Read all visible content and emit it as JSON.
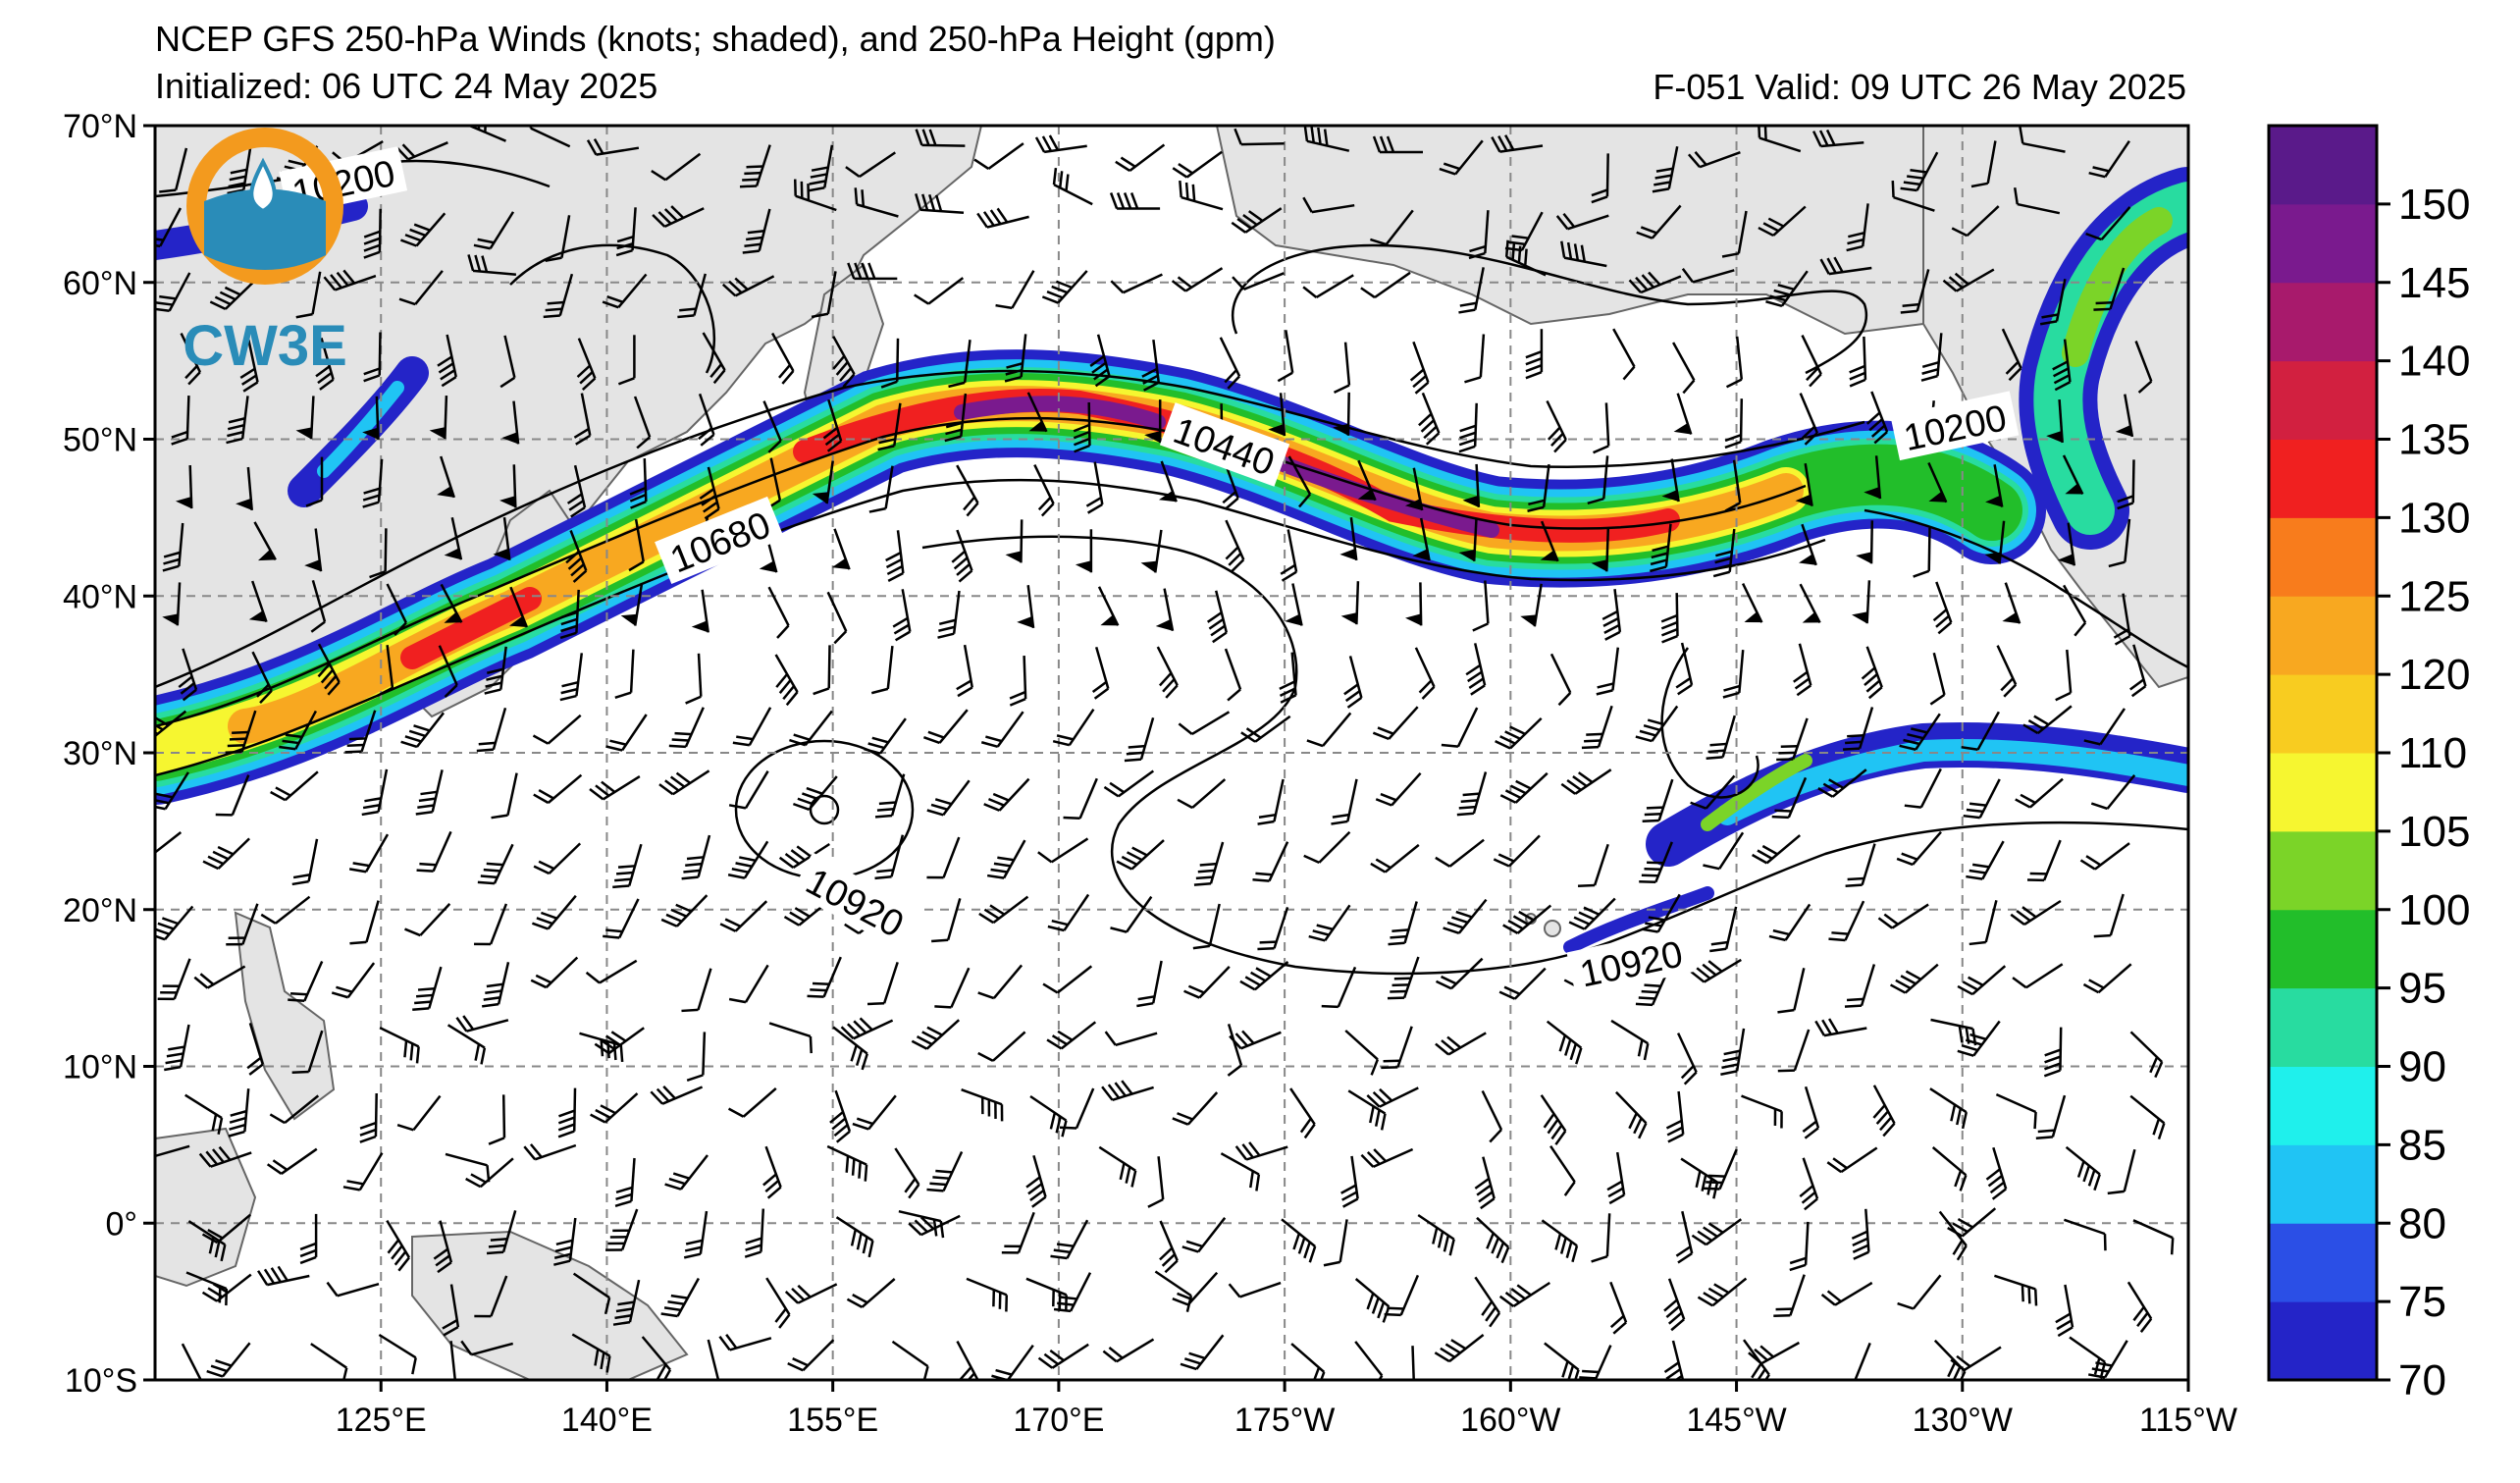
{
  "title": {
    "line1": "NCEP GFS 250-hPa Winds (knots; shaded), and 250-hPa Height (gpm)",
    "line2": "Initialized: 06 UTC 24 May 2025",
    "valid": "F-051  Valid: 09 UTC 26 May 2025"
  },
  "logo": {
    "text": "CW3E",
    "colors": {
      "ring": "#f39a1e",
      "water": "#2a8cb8",
      "text": "#2a8cb8"
    }
  },
  "map": {
    "lat_range": [
      -10,
      70
    ],
    "lon_range_east": [
      110,
      245
    ],
    "lat_ticks": [
      {
        "value": 70,
        "label": "70°N"
      },
      {
        "value": 60,
        "label": "60°N"
      },
      {
        "value": 50,
        "label": "50°N"
      },
      {
        "value": 40,
        "label": "40°N"
      },
      {
        "value": 30,
        "label": "30°N"
      },
      {
        "value": 20,
        "label": "20°N"
      },
      {
        "value": 10,
        "label": "10°N"
      },
      {
        "value": 0,
        "label": "0°"
      },
      {
        "value": -10,
        "label": "10°S"
      }
    ],
    "lon_ticks": [
      {
        "value": 125,
        "label": "125°E"
      },
      {
        "value": 140,
        "label": "140°E"
      },
      {
        "value": 155,
        "label": "155°E"
      },
      {
        "value": 170,
        "label": "170°E"
      },
      {
        "value": 185,
        "label": "175°W"
      },
      {
        "value": 200,
        "label": "160°W"
      },
      {
        "value": 215,
        "label": "145°W"
      },
      {
        "value": 230,
        "label": "130°W"
      },
      {
        "value": 245,
        "label": "115°W"
      }
    ],
    "contour_labels": [
      {
        "text": "10200",
        "lon": 122.5,
        "lat": 66.4,
        "angle": -12
      },
      {
        "text": "10680",
        "lon": 147.5,
        "lat": 43.5,
        "angle": -22
      },
      {
        "text": "10440",
        "lon": 181,
        "lat": 49.6,
        "angle": 20
      },
      {
        "text": "10200",
        "lon": 229.5,
        "lat": 50.8,
        "angle": -12
      },
      {
        "text": "10920",
        "lon": 156.5,
        "lat": 20.5,
        "angle": 28
      },
      {
        "text": "10920",
        "lon": 208,
        "lat": 16.6,
        "angle": -12
      }
    ]
  },
  "colorbar": {
    "levels": [
      70,
      75,
      80,
      85,
      90,
      95,
      100,
      105,
      110,
      120,
      125,
      130,
      135,
      140,
      145,
      150
    ],
    "labels": [
      "70",
      "75",
      "80",
      "85",
      "90",
      "95",
      "100",
      "105",
      "110",
      "120",
      "125",
      "130",
      "135",
      "140",
      "145",
      "150"
    ],
    "colors": [
      "#2424c8",
      "#2b4fe6",
      "#20c4f4",
      "#1ff0ec",
      "#28dca0",
      "#22be2a",
      "#7bd428",
      "#f6f630",
      "#f8cc20",
      "#f8a820",
      "#f87c1c",
      "#f02020",
      "#d22040",
      "#a81a6c",
      "#7a1a8e",
      "#5a1a8a"
    ]
  }
}
